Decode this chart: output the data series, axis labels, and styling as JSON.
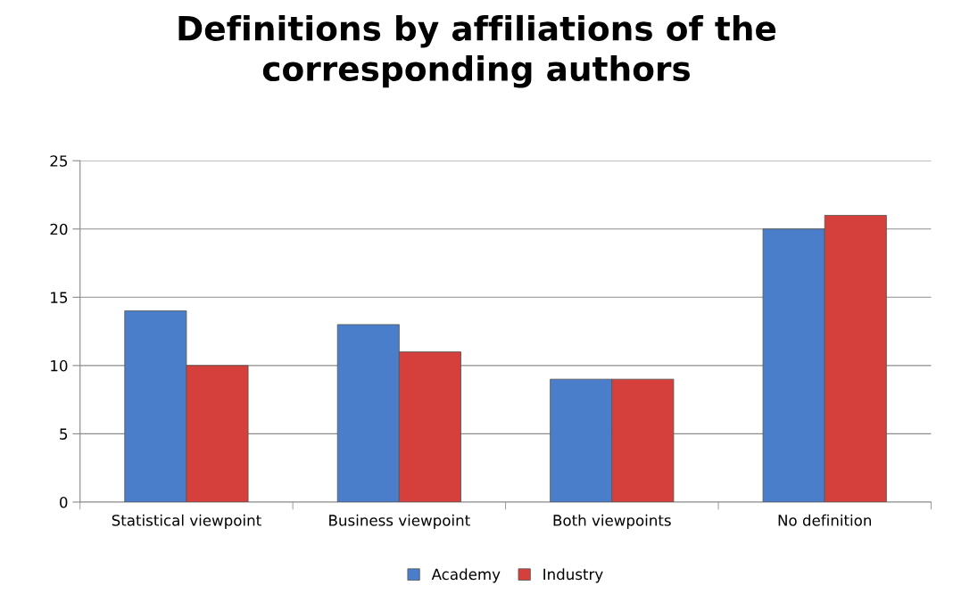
{
  "chart_data": {
    "type": "bar",
    "title": "Definitions by affiliations of the\ncorresponding authors",
    "categories": [
      "Statistical viewpoint",
      "Business viewpoint",
      "Both viewpoints",
      "No definition"
    ],
    "series": [
      {
        "name": "Academy",
        "color": "#4a7ecb",
        "values": [
          14,
          13,
          9,
          20
        ]
      },
      {
        "name": "Industry",
        "color": "#d6403c",
        "values": [
          10,
          11,
          9,
          21
        ]
      }
    ],
    "ylim": [
      0,
      25
    ],
    "yticks": [
      0,
      5,
      10,
      15,
      20,
      25
    ],
    "grid": "y",
    "legend": "bottom"
  }
}
